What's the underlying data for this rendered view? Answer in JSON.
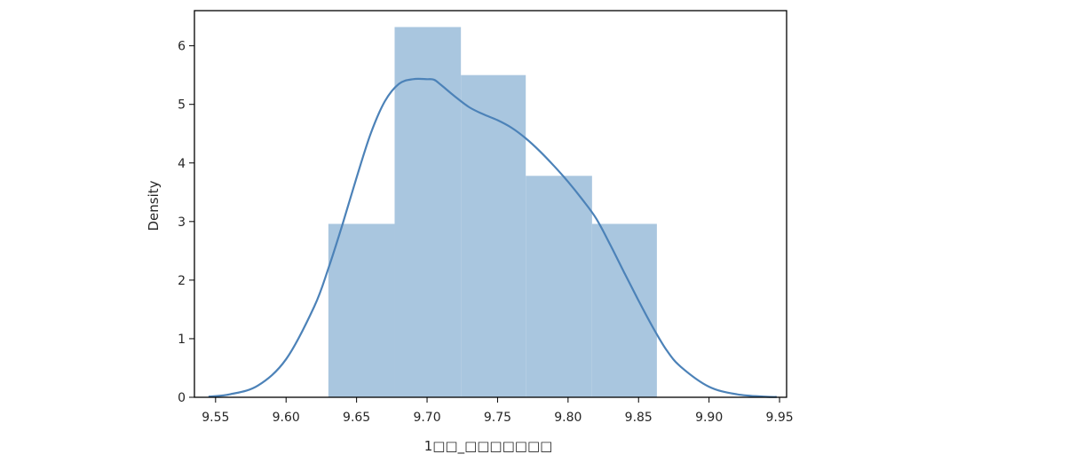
{
  "chart_data": {
    "type": "bar",
    "xlabel": "1□□_□□□□□□□",
    "ylabel": "Density",
    "xlim": [
      9.535,
      9.955
    ],
    "ylim": [
      0,
      6.6
    ],
    "x_ticks": [
      "9.55",
      "9.60",
      "9.65",
      "9.70",
      "9.75",
      "9.80",
      "9.85",
      "9.90",
      "9.95"
    ],
    "y_ticks": [
      "0",
      "1",
      "2",
      "3",
      "4",
      "5",
      "6"
    ],
    "histogram": {
      "bin_edges": [
        9.63,
        9.677,
        9.724,
        9.77,
        9.817,
        9.863
      ],
      "values": [
        2.96,
        6.32,
        5.5,
        3.78,
        2.96
      ],
      "color": "#a9c6df"
    },
    "kde": {
      "color": "#4c82b8",
      "x": [
        9.545,
        9.56,
        9.58,
        9.6,
        9.62,
        9.63,
        9.64,
        9.65,
        9.66,
        9.67,
        9.68,
        9.69,
        9.7,
        9.705,
        9.71,
        9.72,
        9.73,
        9.74,
        9.75,
        9.76,
        9.77,
        9.78,
        9.79,
        9.8,
        9.81,
        9.82,
        9.83,
        9.84,
        9.85,
        9.86,
        9.87,
        9.88,
        9.9,
        9.92,
        9.94,
        9.948
      ],
      "y": [
        0.01,
        0.05,
        0.2,
        0.65,
        1.55,
        2.2,
        2.95,
        3.75,
        4.5,
        5.05,
        5.35,
        5.43,
        5.43,
        5.42,
        5.33,
        5.13,
        4.95,
        4.83,
        4.73,
        4.6,
        4.42,
        4.2,
        3.95,
        3.68,
        3.38,
        3.05,
        2.6,
        2.12,
        1.65,
        1.2,
        0.8,
        0.52,
        0.18,
        0.05,
        0.01,
        0.005
      ]
    }
  }
}
